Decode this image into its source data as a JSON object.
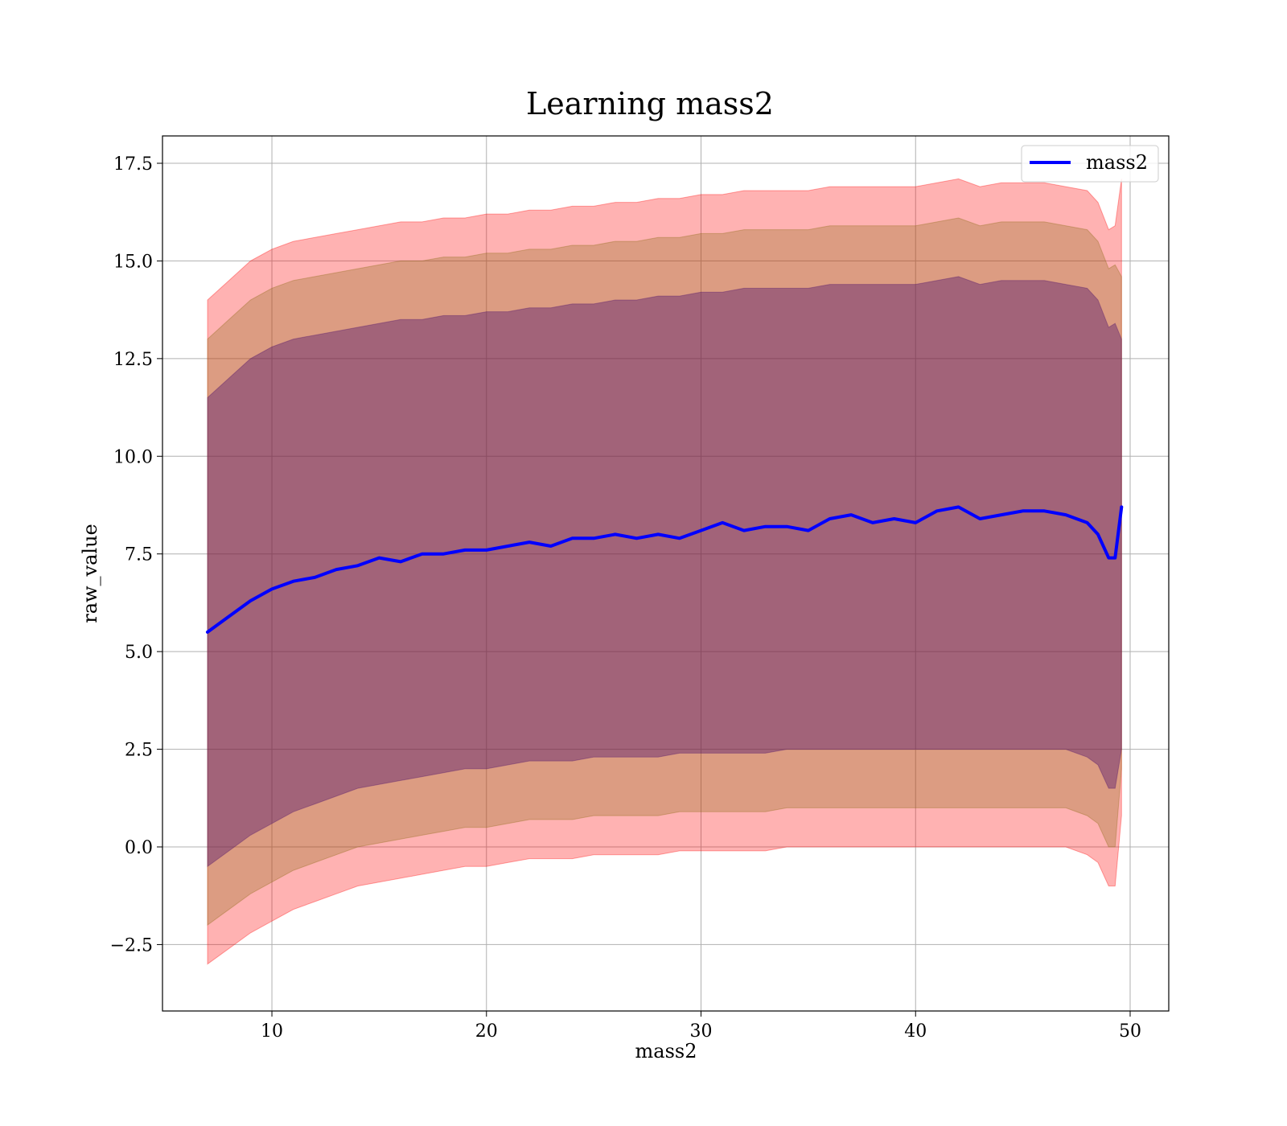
{
  "chart_data": {
    "type": "line",
    "title": "Learning mass2",
    "xlabel": "mass2",
    "ylabel": "raw_value",
    "xlim": [
      4.9,
      51.8
    ],
    "ylim": [
      -4.2,
      18.2
    ],
    "x_ticks": [
      10,
      20,
      30,
      40,
      50
    ],
    "x_tick_labels": [
      "10",
      "20",
      "30",
      "40",
      "50"
    ],
    "y_ticks": [
      -2.5,
      0,
      2.5,
      5,
      7.5,
      10,
      12.5,
      15,
      17.5
    ],
    "y_tick_labels": [
      "−2.5",
      "0.0",
      "2.5",
      "5.0",
      "7.5",
      "10.0",
      "12.5",
      "15.0",
      "17.5"
    ],
    "grid": true,
    "legend": {
      "position": "top-right",
      "entries": [
        "mass2"
      ]
    },
    "colors": {
      "line": "#0000ff",
      "band_outer": "#ff0000",
      "band_middle": "#8b6914",
      "band_inner": "#4b0f6b"
    },
    "x": [
      7.0,
      8.0,
      9.0,
      10.0,
      11.0,
      12.0,
      13.0,
      14.0,
      15.0,
      16.0,
      17.0,
      18.0,
      19.0,
      20.0,
      21.0,
      22.0,
      23.0,
      24.0,
      25.0,
      26.0,
      27.0,
      28.0,
      29.0,
      30.0,
      31.0,
      32.0,
      33.0,
      34.0,
      35.0,
      36.0,
      37.0,
      38.0,
      39.0,
      40.0,
      41.0,
      42.0,
      43.0,
      44.0,
      45.0,
      46.0,
      47.0,
      48.0,
      48.5,
      49.0,
      49.3,
      49.6
    ],
    "series": [
      {
        "name": "mass2",
        "values": [
          5.5,
          5.9,
          6.3,
          6.6,
          6.8,
          6.9,
          7.1,
          7.2,
          7.4,
          7.3,
          7.5,
          7.5,
          7.6,
          7.6,
          7.7,
          7.8,
          7.7,
          7.9,
          7.9,
          8.0,
          7.9,
          8.0,
          7.9,
          8.1,
          8.3,
          8.1,
          8.2,
          8.2,
          8.1,
          8.4,
          8.5,
          8.3,
          8.4,
          8.3,
          8.6,
          8.7,
          8.4,
          8.5,
          8.6,
          8.6,
          8.5,
          8.3,
          8.0,
          7.4,
          7.4,
          8.7
        ]
      }
    ],
    "bands": [
      {
        "level": "outer",
        "upper": [
          14.0,
          14.5,
          15.0,
          15.3,
          15.5,
          15.6,
          15.7,
          15.8,
          15.9,
          16.0,
          16.0,
          16.1,
          16.1,
          16.2,
          16.2,
          16.3,
          16.3,
          16.4,
          16.4,
          16.5,
          16.5,
          16.6,
          16.6,
          16.7,
          16.7,
          16.8,
          16.8,
          16.8,
          16.8,
          16.9,
          16.9,
          16.9,
          16.9,
          16.9,
          17.0,
          17.1,
          16.9,
          17.0,
          17.0,
          17.0,
          16.9,
          16.8,
          16.5,
          15.8,
          15.9,
          17.1
        ],
        "lower": [
          -3.0,
          -2.6,
          -2.2,
          -1.9,
          -1.6,
          -1.4,
          -1.2,
          -1.0,
          -0.9,
          -0.8,
          -0.7,
          -0.6,
          -0.5,
          -0.5,
          -0.4,
          -0.3,
          -0.3,
          -0.3,
          -0.2,
          -0.2,
          -0.2,
          -0.2,
          -0.1,
          -0.1,
          -0.1,
          -0.1,
          -0.1,
          0.0,
          0.0,
          0.0,
          0.0,
          0.0,
          0.0,
          0.0,
          0.0,
          0.0,
          0.0,
          0.0,
          0.0,
          0.0,
          0.0,
          -0.2,
          -0.4,
          -1.0,
          -1.0,
          0.8
        ]
      },
      {
        "level": "middle",
        "upper": [
          13.0,
          13.5,
          14.0,
          14.3,
          14.5,
          14.6,
          14.7,
          14.8,
          14.9,
          15.0,
          15.0,
          15.1,
          15.1,
          15.2,
          15.2,
          15.3,
          15.3,
          15.4,
          15.4,
          15.5,
          15.5,
          15.6,
          15.6,
          15.7,
          15.7,
          15.8,
          15.8,
          15.8,
          15.8,
          15.9,
          15.9,
          15.9,
          15.9,
          15.9,
          16.0,
          16.1,
          15.9,
          16.0,
          16.0,
          16.0,
          15.9,
          15.8,
          15.5,
          14.8,
          14.9,
          14.6
        ],
        "lower": [
          -2.0,
          -1.6,
          -1.2,
          -0.9,
          -0.6,
          -0.4,
          -0.2,
          0.0,
          0.1,
          0.2,
          0.3,
          0.4,
          0.5,
          0.5,
          0.6,
          0.7,
          0.7,
          0.7,
          0.8,
          0.8,
          0.8,
          0.8,
          0.9,
          0.9,
          0.9,
          0.9,
          0.9,
          1.0,
          1.0,
          1.0,
          1.0,
          1.0,
          1.0,
          1.0,
          1.0,
          1.0,
          1.0,
          1.0,
          1.0,
          1.0,
          1.0,
          0.8,
          0.6,
          0.0,
          0.0,
          2.0
        ]
      },
      {
        "level": "inner",
        "upper": [
          11.5,
          12.0,
          12.5,
          12.8,
          13.0,
          13.1,
          13.2,
          13.3,
          13.4,
          13.5,
          13.5,
          13.6,
          13.6,
          13.7,
          13.7,
          13.8,
          13.8,
          13.9,
          13.9,
          14.0,
          14.0,
          14.1,
          14.1,
          14.2,
          14.2,
          14.3,
          14.3,
          14.3,
          14.3,
          14.4,
          14.4,
          14.4,
          14.4,
          14.4,
          14.5,
          14.6,
          14.4,
          14.5,
          14.5,
          14.5,
          14.4,
          14.3,
          14.0,
          13.3,
          13.4,
          13.0
        ],
        "lower": [
          -0.5,
          -0.1,
          0.3,
          0.6,
          0.9,
          1.1,
          1.3,
          1.5,
          1.6,
          1.7,
          1.8,
          1.9,
          2.0,
          2.0,
          2.1,
          2.2,
          2.2,
          2.2,
          2.3,
          2.3,
          2.3,
          2.3,
          2.4,
          2.4,
          2.4,
          2.4,
          2.4,
          2.5,
          2.5,
          2.5,
          2.5,
          2.5,
          2.5,
          2.5,
          2.5,
          2.5,
          2.5,
          2.5,
          2.5,
          2.5,
          2.5,
          2.3,
          2.1,
          1.5,
          1.5,
          2.5
        ]
      }
    ]
  }
}
